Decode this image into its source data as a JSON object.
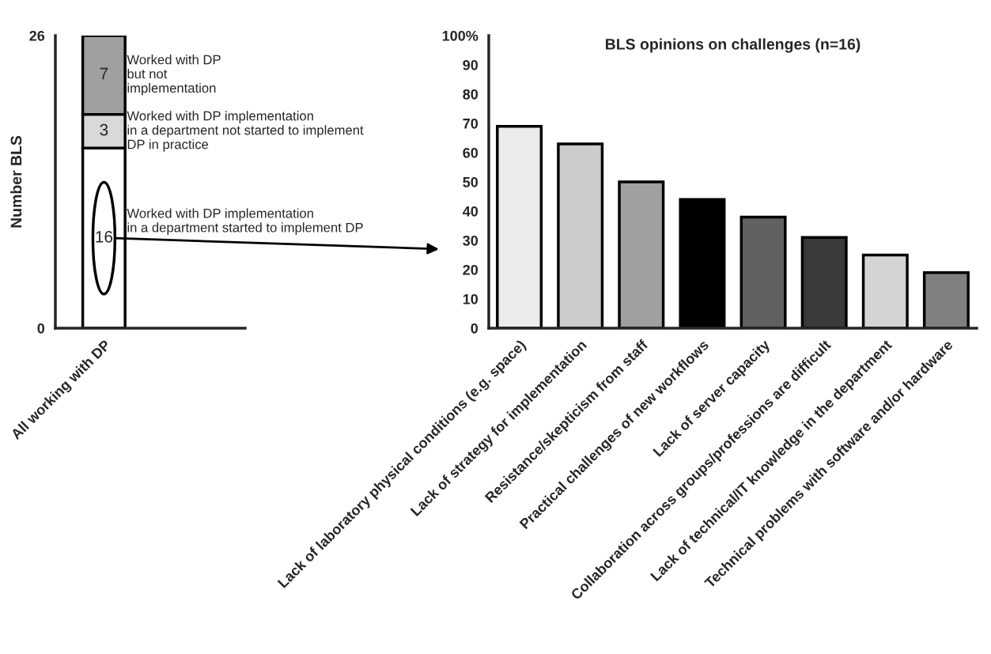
{
  "chart_data": [
    {
      "type": "bar",
      "stacked": true,
      "categories": [
        "All working with DP"
      ],
      "ylabel": "Number BLS",
      "ylim": [
        0,
        26
      ],
      "yticks": [
        0,
        26
      ],
      "data_labels": true,
      "series": [
        {
          "name": "Worked with DP implementation\nin a department started to implement DP",
          "color": "#ffffff",
          "values": [
            16
          ]
        },
        {
          "name": "Worked with DP implementation\nin a department not started to implement\nDP in practice",
          "color": "#d9d9d9",
          "values": [
            3
          ]
        },
        {
          "name": "Worked with DP\nbut not\nimplementation",
          "color": "#a0a0a0",
          "values": [
            7
          ]
        }
      ]
    },
    {
      "type": "bar",
      "title": "BLS opinions on challenges (n=16)",
      "categories": [
        "Lack of laboratory physical conditions (e.g. space)",
        "Lack of strategy for implementation",
        "Resistance/skepticism from staff",
        "Practical challenges of new workflows",
        "Lack of server capacity",
        "Collaboration across groups/professions are difficult",
        "Lack of technical/IT knowledge in the department",
        "Technical problems with software and/or hardware"
      ],
      "values": [
        69,
        63,
        50,
        44,
        38,
        31,
        25,
        19
      ],
      "colors": [
        "#ebebeb",
        "#cccccc",
        "#a0a0a0",
        "#000000",
        "#616161",
        "#3a3a3a",
        "#d4d4d4",
        "#808080"
      ],
      "ylim": [
        0,
        100
      ],
      "yticks": [
        0,
        10,
        20,
        30,
        40,
        50,
        60,
        70,
        80,
        90,
        {
          "value": 100,
          "label": "100%"
        }
      ]
    }
  ]
}
